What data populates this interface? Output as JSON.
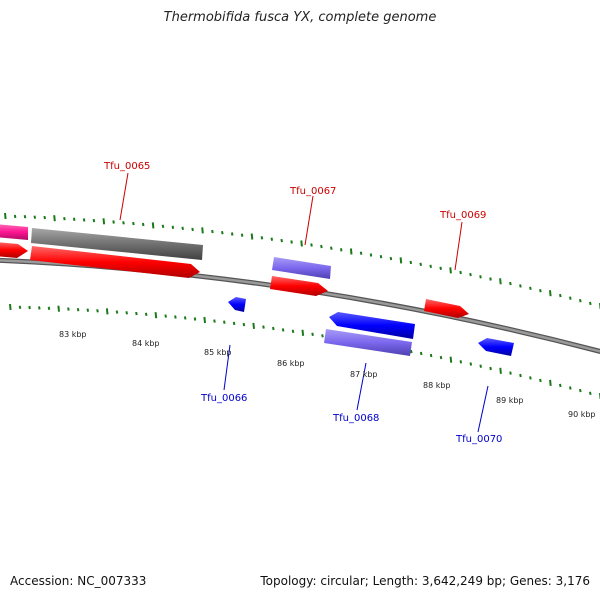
{
  "title": "Thermobifida fusca YX, complete genome",
  "footer": {
    "accession": "Accession: NC_007333",
    "stats": "Topology: circular; Length: 3,642,249 bp; Genes: 3,176"
  },
  "colors": {
    "backbone": "#808080",
    "forward_cds": "#ff0000",
    "reverse_cds": "#0000ff",
    "rna": "#7b68ee",
    "gray_feature": "#808080",
    "pink_feature": "#ff1493",
    "tick": "#1a7a1a",
    "forward_label": "#cc0000",
    "reverse_label": "#0000cc"
  },
  "scale": [
    "83 kbp",
    "84 kbp",
    "85 kbp",
    "86 kbp",
    "87 kbp",
    "88 kbp",
    "89 kbp",
    "90 kbp"
  ],
  "labels": [
    "Tfu_0065",
    "Tfu_0066",
    "Tfu_0067",
    "Tfu_0068",
    "Tfu_0069",
    "Tfu_0070"
  ]
}
